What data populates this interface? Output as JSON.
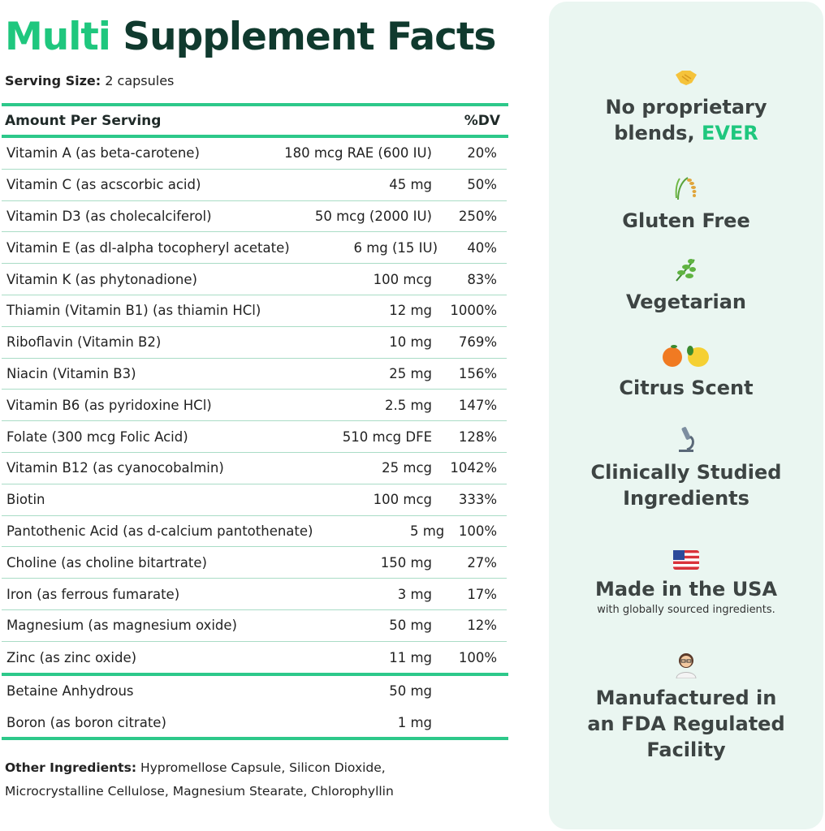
{
  "title": {
    "accent": "Multi",
    "rest": "Supplement Facts"
  },
  "serving": {
    "label": "Serving Size:",
    "value": "2 capsules"
  },
  "table": {
    "header": {
      "amount": "Amount Per Serving",
      "dv": "%DV"
    },
    "rows": [
      {
        "name": "Vitamin A (as beta-carotene)",
        "amount": "180 mcg RAE (600 IU)",
        "dv": "20%"
      },
      {
        "name": "Vitamin C (as acscorbic acid)",
        "amount": "45 mg",
        "dv": "50%"
      },
      {
        "name": "Vitamin D3 (as cholecalciferol)",
        "amount": "50 mcg (2000 IU)",
        "dv": "250%"
      },
      {
        "name": "Vitamin E (as dl-alpha tocopheryl acetate)",
        "amount": "6 mg (15 IU)",
        "dv": "40%"
      },
      {
        "name": "Vitamin K (as phytonadione)",
        "amount": "100 mcg",
        "dv": "83%"
      },
      {
        "name": "Thiamin (Vitamin B1) (as thiamin HCl)",
        "amount": "12 mg",
        "dv": "1000%"
      },
      {
        "name": "Riboflavin (Vitamin B2)",
        "amount": "10 mg",
        "dv": "769%"
      },
      {
        "name": "Niacin (Vitamin B3)",
        "amount": "25 mg",
        "dv": "156%"
      },
      {
        "name": "Vitamin B6 (as pyridoxine HCl)",
        "amount": "2.5 mg",
        "dv": "147%"
      },
      {
        "name": "Folate (300 mcg Folic Acid)",
        "amount": "510 mcg DFE",
        "dv": "128%"
      },
      {
        "name": "Vitamin B12 (as cyanocobalmin)",
        "amount": "25 mcg",
        "dv": "1042%"
      },
      {
        "name": "Biotin",
        "amount": "100 mcg",
        "dv": "333%"
      },
      {
        "name": "Pantothenic Acid (as d-calcium pantothenate)",
        "amount": "5 mg",
        "dv": "100%"
      },
      {
        "name": "Choline (as choline bitartrate)",
        "amount": "150 mg",
        "dv": "27%"
      },
      {
        "name": "Iron (as ferrous fumarate)",
        "amount": "3 mg",
        "dv": "17%"
      },
      {
        "name": "Magnesium (as magnesium oxide)",
        "amount": "50 mg",
        "dv": "12%"
      },
      {
        "name": "Zinc (as zinc oxide)",
        "amount": "11 mg",
        "dv": "100%"
      }
    ],
    "extra_rows": [
      {
        "name": "Betaine Anhydrous",
        "amount": "50 mg",
        "dv": ""
      },
      {
        "name": "Boron (as boron citrate)",
        "amount": "1 mg",
        "dv": ""
      }
    ]
  },
  "other": {
    "label": "Other Ingredients:",
    "value": "Hypromellose Capsule, Silicon Dioxide, Microcrystalline Cellulose, Magnesium Stearate, Chlorophyllin"
  },
  "features": [
    {
      "icon": "handshake-icon",
      "line1": "No proprietary",
      "line2": "blends, ",
      "accent": "EVER"
    },
    {
      "icon": "rice-wheat-icon",
      "line1": "Gluten Free"
    },
    {
      "icon": "herb-leaf-icon",
      "line1": "Vegetarian"
    },
    {
      "icon": "citrus-icon",
      "line1": "Citrus Scent"
    },
    {
      "icon": "microscope-icon",
      "line1": "Clinically Studied",
      "line2": "Ingredients"
    },
    {
      "icon": "us-flag-icon",
      "line1": "Made in the USA",
      "sub": "with globally sourced ingredients."
    },
    {
      "icon": "scientist-icon",
      "line1": "Manufactured in",
      "line2": "an FDA Regulated",
      "line3": "Facility"
    }
  ],
  "colors": {
    "accent": "#1fc77e",
    "title": "#103a2e",
    "panel": "#eaf6f1",
    "rule": "#2dc88a"
  }
}
